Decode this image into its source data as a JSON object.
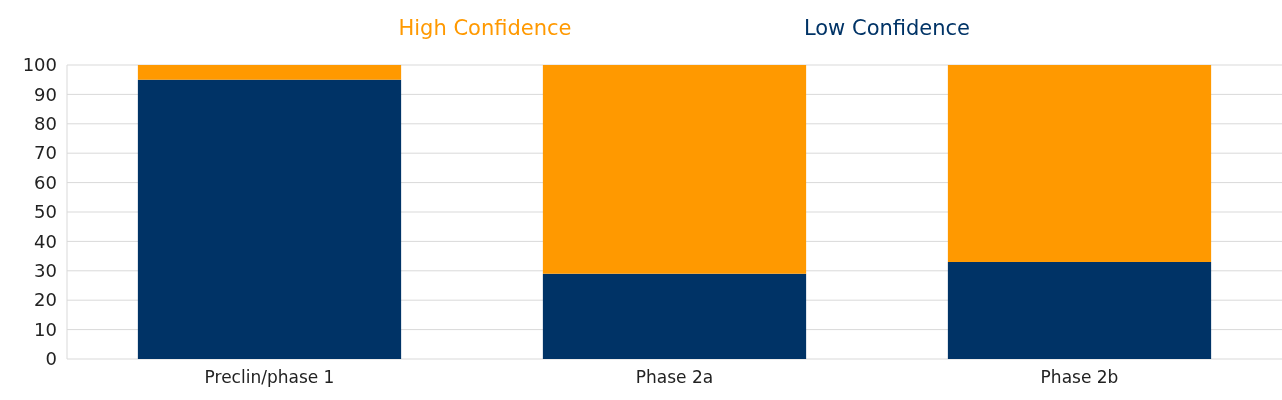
{
  "chart_data": {
    "type": "bar",
    "stacked": true,
    "categories": [
      "Preclin/phase 1",
      "Phase 2a",
      "Phase 2b"
    ],
    "series": [
      {
        "name": "Low Confidence",
        "color": "#003366",
        "values": [
          95,
          29,
          33
        ]
      },
      {
        "name": "High Confidence",
        "color": "#ff9900",
        "values": [
          5,
          71,
          67
        ]
      }
    ],
    "ylim": [
      0,
      100
    ],
    "yticks": [
      0,
      10,
      20,
      30,
      40,
      50,
      60,
      70,
      80,
      90,
      100
    ],
    "grid": "y",
    "legend": "top"
  }
}
